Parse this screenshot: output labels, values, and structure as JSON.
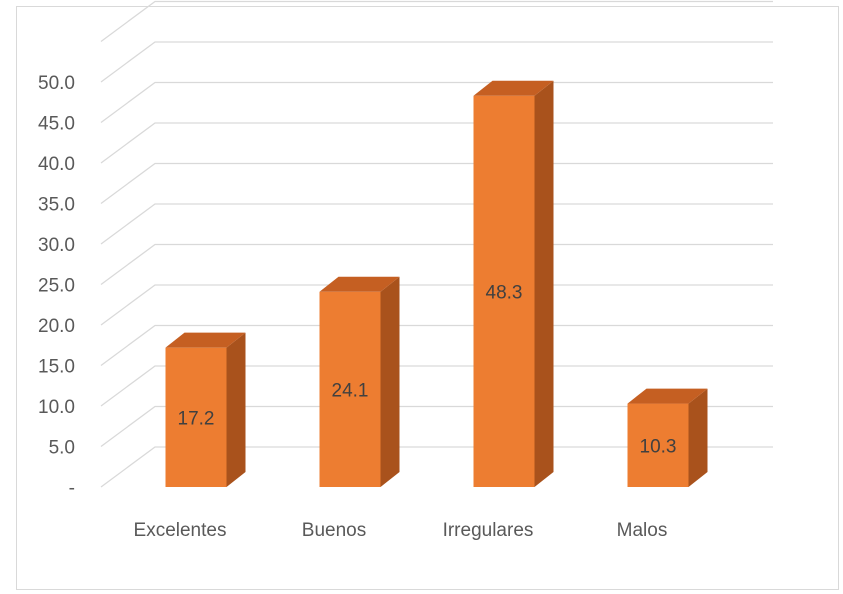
{
  "chart_data": {
    "type": "bar",
    "categories": [
      "Excelentes",
      "Buenos",
      "Irregulares",
      "Malos"
    ],
    "values": [
      17.2,
      24.1,
      48.3,
      10.3
    ],
    "data_labels": [
      "17.2",
      "24.1",
      "48.3",
      "10.3"
    ],
    "y_tick_labels": [
      "-",
      "5.0",
      "10.0",
      "15.0",
      "20.0",
      "25.0",
      "30.0",
      "35.0",
      "40.0",
      "45.0",
      "50.0"
    ],
    "ylim": [
      0,
      55
    ],
    "grid": true,
    "legend": "none",
    "style": "3d-column",
    "colors": {
      "bar_front": "#ed7d31",
      "bar_side": "#a9521c",
      "bar_top": "#c55f22",
      "grid": "#d9d9d9",
      "text": "#595959"
    }
  }
}
